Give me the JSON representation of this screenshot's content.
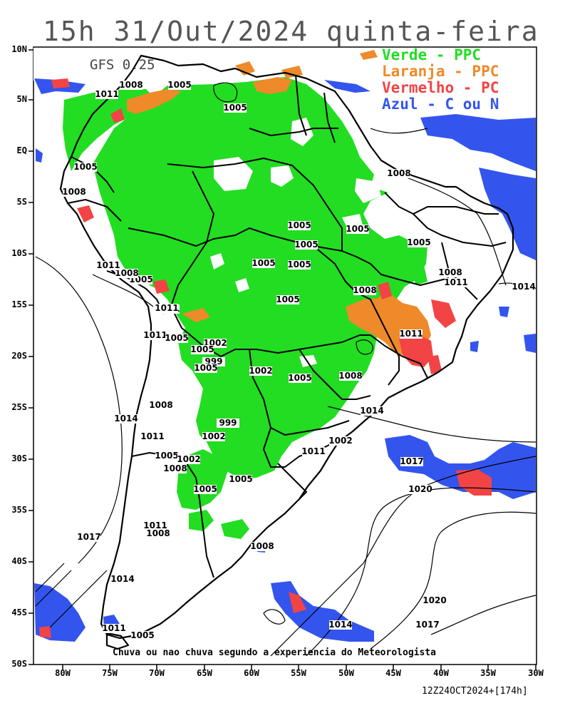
{
  "header": {
    "title": "15h 31/Out/2024 quinta-feira",
    "model": "GFS 0.25"
  },
  "legend": [
    {
      "label": "Verde - PPC",
      "color": "#22dd22"
    },
    {
      "label": "Laranja - PPC",
      "color": "#ee8a2a"
    },
    {
      "label": "Vermelho - PC",
      "color": "#f24444"
    },
    {
      "label": "Azul - C ou N",
      "color": "#3355ee"
    }
  ],
  "axes": {
    "lat_labels": [
      "10N",
      "5N",
      "EQ",
      "5S",
      "10S",
      "15S",
      "20S",
      "25S",
      "30S",
      "35S",
      "40S",
      "45S",
      "50S"
    ],
    "lon_labels": [
      "80W",
      "75W",
      "70W",
      "65W",
      "60W",
      "55W",
      "50W",
      "45W",
      "40W",
      "35W",
      "30W"
    ]
  },
  "isobars": [
    {
      "value": "1008"
    },
    {
      "value": "1005"
    },
    {
      "value": "1011"
    },
    {
      "value": "1005"
    },
    {
      "value": "1005"
    },
    {
      "value": "1008"
    },
    {
      "value": "1005"
    },
    {
      "value": "1008"
    },
    {
      "value": "1011"
    },
    {
      "value": "1005"
    },
    {
      "value": "1005"
    },
    {
      "value": "1005"
    },
    {
      "value": "1005"
    },
    {
      "value": "1005"
    },
    {
      "value": "1011"
    },
    {
      "value": "1008"
    },
    {
      "value": "1005"
    },
    {
      "value": "1008"
    },
    {
      "value": "1011"
    },
    {
      "value": "1014"
    },
    {
      "value": "1005"
    },
    {
      "value": "1008"
    },
    {
      "value": "1011"
    },
    {
      "value": "1011"
    },
    {
      "value": "1011"
    },
    {
      "value": "1005"
    },
    {
      "value": "1002"
    },
    {
      "value": "1005"
    },
    {
      "value": "999"
    },
    {
      "value": "1005"
    },
    {
      "value": "1002"
    },
    {
      "value": "1005"
    },
    {
      "value": "1008"
    },
    {
      "value": "1014"
    },
    {
      "value": "1014"
    },
    {
      "value": "1008"
    },
    {
      "value": "999"
    },
    {
      "value": "1011"
    },
    {
      "value": "1002"
    },
    {
      "value": "1005"
    },
    {
      "value": "1002"
    },
    {
      "value": "1008"
    },
    {
      "value": "1011"
    },
    {
      "value": "1002"
    },
    {
      "value": "1005"
    },
    {
      "value": "1005"
    },
    {
      "value": "1017"
    },
    {
      "value": "1020"
    },
    {
      "value": "1011"
    },
    {
      "value": "1008"
    },
    {
      "value": "1017"
    },
    {
      "value": "1008"
    },
    {
      "value": "1014"
    },
    {
      "value": "1020"
    },
    {
      "value": "1017"
    },
    {
      "value": "1014"
    },
    {
      "value": "1011"
    },
    {
      "value": "1005"
    }
  ],
  "footer": {
    "note": "Chuva ou nao chuva segundo a experiencia do Meteorologista",
    "stamp": "12Z24OCT2024+[174h]"
  }
}
